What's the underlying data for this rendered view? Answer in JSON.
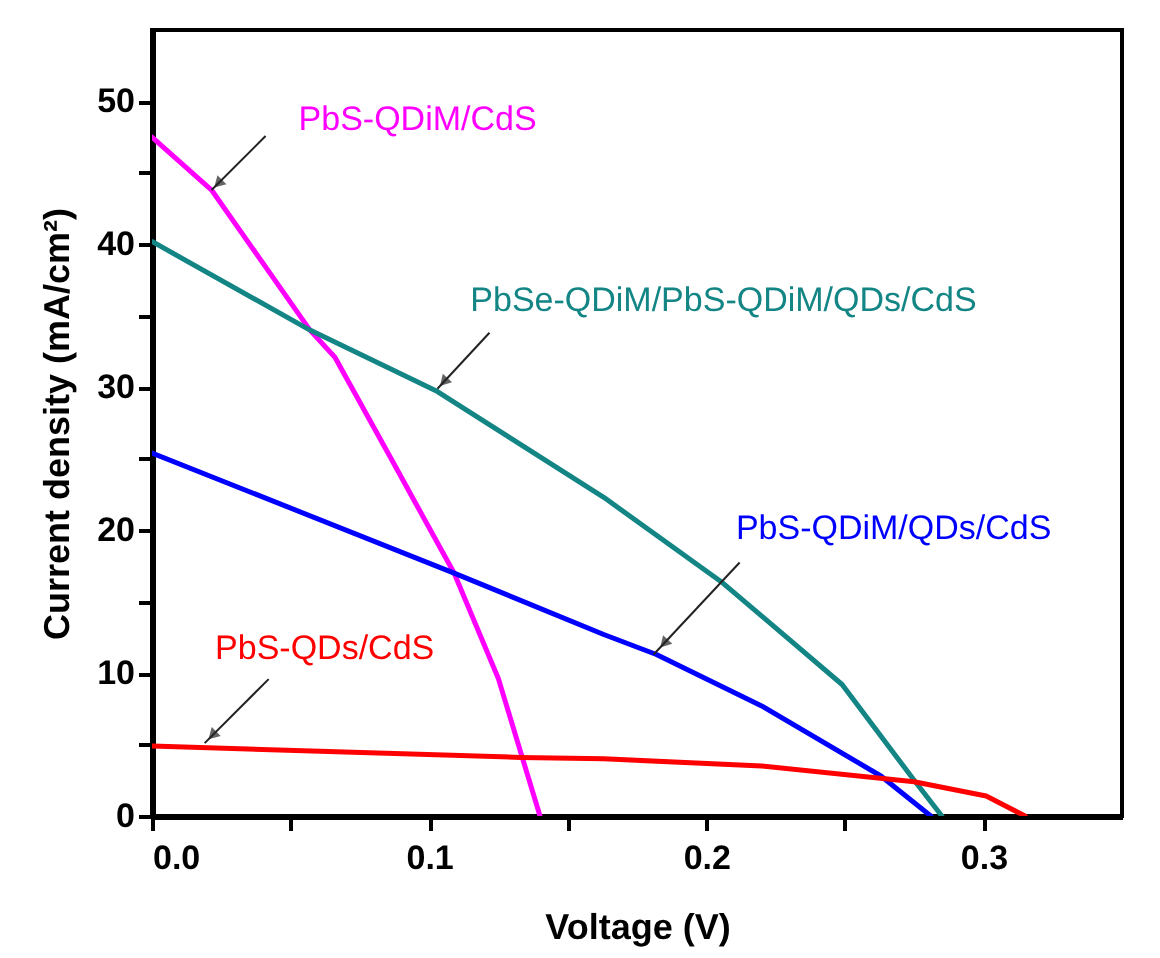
{
  "chart_data": {
    "type": "line",
    "xlabel": "Voltage (V)",
    "ylabel": "Current density (mA/cm²)",
    "xlim": [
      0,
      0.35
    ],
    "ylim": [
      0,
      55
    ],
    "xticks": [
      {
        "value": 0,
        "label": "0.0"
      },
      {
        "value": 0.05,
        "label": null
      },
      {
        "value": 0.1,
        "label": "0.1"
      },
      {
        "value": 0.15,
        "label": null
      },
      {
        "value": 0.2,
        "label": "0.2"
      },
      {
        "value": 0.25,
        "label": null
      },
      {
        "value": 0.3,
        "label": "0.3"
      }
    ],
    "yticks": [
      0,
      {
        "value": 5,
        "label": null
      },
      10,
      {
        "value": 15,
        "label": null
      },
      20,
      {
        "value": 25,
        "label": null
      },
      30,
      {
        "value": 35,
        "label": null
      },
      40,
      {
        "value": 45,
        "label": null
      },
      50
    ],
    "grid": false,
    "legend": false,
    "marker": "none",
    "line_style": "solid",
    "series": [
      {
        "color": "#ff00ff",
        "x": [
          0,
          0.0215,
          0.057,
          0.066,
          0.086,
          0.109,
          0.125,
          0.14
        ],
        "values": [
          47.5,
          43.8,
          34,
          32.1,
          25.1,
          17,
          9.6,
          0
        ]
      },
      {
        "color": "#138585",
        "x": [
          0,
          0.057,
          0.103,
          0.163,
          0.206,
          0.249,
          0.275,
          0.285
        ],
        "values": [
          40.2,
          34,
          29.7,
          22.3,
          16.3,
          9.2,
          2.5,
          0
        ]
      },
      {
        "color": "#0000ff",
        "x": [
          0,
          0.109,
          0.163,
          0.182,
          0.22,
          0.263,
          0.281
        ],
        "values": [
          25.4,
          17,
          12.7,
          11.3,
          7.7,
          2.8,
          0
        ]
      },
      {
        "color": "#ff0000",
        "x": [
          0,
          0.133,
          0.163,
          0.22,
          0.275,
          0.301,
          0.315
        ],
        "values": [
          4.9,
          4.1,
          4.0,
          3.5,
          2.4,
          1.4,
          0
        ]
      }
    ],
    "annotations": [
      {
        "text": "PbS-QDiM/CdS",
        "x": 0.0215,
        "y": 43.8
      },
      {
        "text": "PbSe-QDiM/PbS-QDiM/QDs/CdS",
        "x": 0.103,
        "y": 29.9
      },
      {
        "text": "PbS-QDiM/QDs/CdS",
        "x": 0.181,
        "y": 11.3
      },
      {
        "text": "PbS-QDs/CdS",
        "x": 0.019,
        "y": 5.1
      }
    ]
  }
}
